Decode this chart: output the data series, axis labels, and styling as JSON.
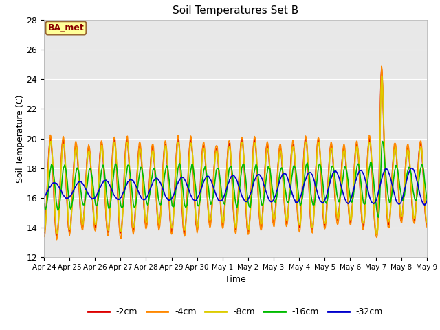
{
  "title": "Soil Temperatures Set B",
  "xlabel": "Time",
  "ylabel": "Soil Temperature (C)",
  "ylim": [
    12,
    28
  ],
  "yticks": [
    12,
    14,
    16,
    18,
    20,
    22,
    24,
    26,
    28
  ],
  "background_color": "#e8e8e8",
  "annotation_text": "BA_met",
  "annotation_color": "#8b0000",
  "annotation_bg": "#ffff99",
  "annotation_border": "#996633",
  "tick_labels": [
    "Apr 24",
    "Apr 25",
    "Apr 26",
    "Apr 27",
    "Apr 28",
    "Apr 29",
    "Apr 30",
    "May 1",
    "May 2",
    "May 3",
    "May 4",
    "May 5",
    "May 6",
    "May 7",
    "May 8",
    "May 9"
  ],
  "series": {
    "-2cm": {
      "color": "#dd0000",
      "lw": 1.2
    },
    "-4cm": {
      "color": "#ff8800",
      "lw": 1.2
    },
    "-8cm": {
      "color": "#ddcc00",
      "lw": 1.2
    },
    "-16cm": {
      "color": "#00bb00",
      "lw": 1.2
    },
    "-32cm": {
      "color": "#0000cc",
      "lw": 1.2
    }
  },
  "legend_order": [
    "-2cm",
    "-4cm",
    "-8cm",
    "-16cm",
    "-32cm"
  ]
}
